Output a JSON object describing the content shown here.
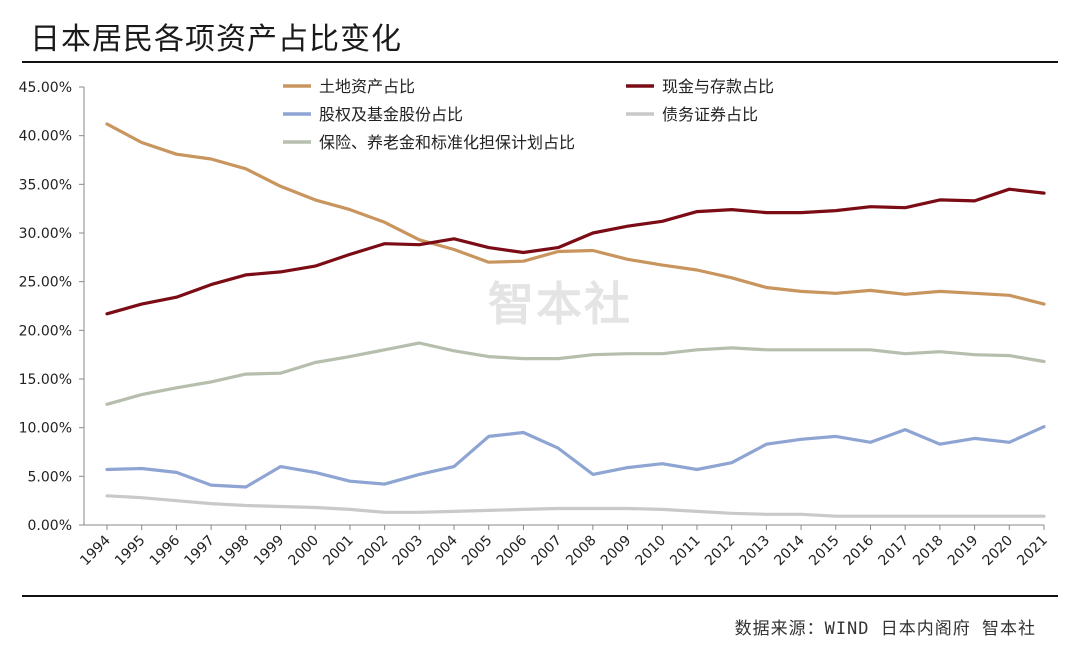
{
  "title": "日本居民各项资产占比变化",
  "watermark": "智本社",
  "source": "数据来源：WIND 日本内阁府 智本社",
  "chart_data": {
    "type": "line",
    "title": "日本居民各项资产占比变化",
    "xlabel": "",
    "ylabel": "",
    "ylim": [
      0,
      45
    ],
    "yticks": [
      "0.00%",
      "5.00%",
      "10.00%",
      "15.00%",
      "20.00%",
      "25.00%",
      "30.00%",
      "35.00%",
      "40.00%",
      "45.00%"
    ],
    "grid": false,
    "legend_position": "top",
    "categories": [
      "1994",
      "1995",
      "1996",
      "1997",
      "1998",
      "1999",
      "2000",
      "2001",
      "2002",
      "2003",
      "2004",
      "2005",
      "2006",
      "2007",
      "2008",
      "2009",
      "2010",
      "2011",
      "2012",
      "2013",
      "2014",
      "2015",
      "2016",
      "2017",
      "2018",
      "2019",
      "2020",
      "2021"
    ],
    "series": [
      {
        "name": "土地资产占比",
        "color": "#C8955E",
        "values": [
          41.2,
          39.3,
          38.1,
          37.6,
          36.6,
          34.8,
          33.4,
          32.4,
          31.1,
          29.3,
          28.3,
          27.0,
          27.1,
          28.1,
          28.2,
          27.3,
          26.7,
          26.2,
          25.4,
          24.4,
          24.0,
          23.8,
          24.1,
          23.7,
          24.0,
          23.8,
          23.6,
          22.7
        ]
      },
      {
        "name": "现金与存款占比",
        "color": "#7B0C16",
        "values": [
          21.7,
          22.7,
          23.4,
          24.7,
          25.7,
          26.0,
          26.6,
          27.8,
          28.9,
          28.8,
          29.4,
          28.5,
          28.0,
          28.5,
          30.0,
          30.7,
          31.2,
          32.2,
          32.4,
          32.1,
          32.1,
          32.3,
          32.7,
          32.6,
          33.4,
          33.3,
          34.5,
          34.1
        ]
      },
      {
        "name": "股权及基金股份占比",
        "color": "#8EA4D2",
        "values": [
          5.7,
          5.8,
          5.4,
          4.1,
          3.9,
          6.0,
          5.4,
          4.5,
          4.2,
          5.2,
          6.0,
          9.1,
          9.5,
          7.9,
          5.2,
          5.9,
          6.3,
          5.7,
          6.4,
          8.3,
          8.8,
          9.1,
          8.5,
          9.8,
          8.3,
          8.9,
          8.5,
          10.1
        ]
      },
      {
        "name": "债务证券占比",
        "color": "#C9C9C9",
        "values": [
          3.0,
          2.8,
          2.5,
          2.2,
          2.0,
          1.9,
          1.8,
          1.6,
          1.3,
          1.3,
          1.4,
          1.5,
          1.6,
          1.7,
          1.7,
          1.7,
          1.6,
          1.4,
          1.2,
          1.1,
          1.1,
          0.9,
          0.9,
          0.9,
          0.9,
          0.9,
          0.9,
          0.9
        ]
      },
      {
        "name": "保险、养老金和标准化担保计划占比",
        "color": "#B6BEAE",
        "values": [
          12.4,
          13.4,
          14.1,
          14.7,
          15.5,
          15.6,
          16.7,
          17.3,
          18.0,
          18.7,
          17.9,
          17.3,
          17.1,
          17.1,
          17.5,
          17.6,
          17.6,
          18.0,
          18.2,
          18.0,
          18.0,
          18.0,
          18.0,
          17.6,
          17.8,
          17.5,
          17.4,
          16.8
        ]
      }
    ]
  }
}
